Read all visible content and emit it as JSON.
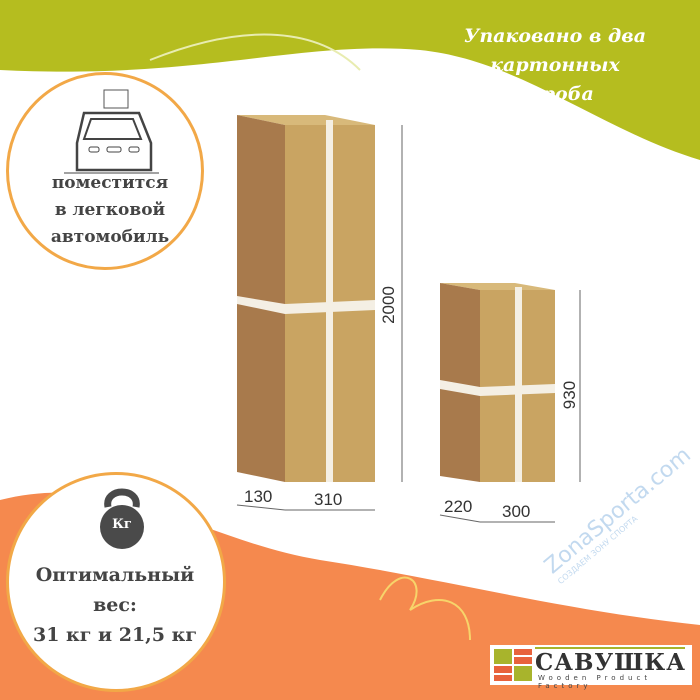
{
  "header": {
    "title_lines": [
      "Упаковано в два",
      "картонных",
      "короба"
    ]
  },
  "car_badge": {
    "icon": "car-with-box-icon",
    "lines": [
      "поместится",
      "в легковой",
      "автомобиль"
    ]
  },
  "weight_badge": {
    "icon": "kettlebell-icon",
    "icon_label": "Кг",
    "lines": [
      "Оптимальный",
      "вес:",
      "31 кг и 21,5 кг"
    ]
  },
  "boxes": [
    {
      "depth": "130",
      "width": "310",
      "height": "2000"
    },
    {
      "depth": "220",
      "width": "300",
      "height": "930"
    }
  ],
  "logo": {
    "name": "САВУШКА",
    "tagline": "Wooden Product Factory"
  },
  "watermark": {
    "text": "ZonaSporta.com",
    "sub": "СОЗДАЕМ ЗОНУ СПОРТА"
  },
  "colors": {
    "green": "#b5bd1f",
    "orange": "#f5894e",
    "cardboard_front": "#c9a462",
    "cardboard_side": "#a87a4c",
    "circle_border": "#f2a847"
  }
}
